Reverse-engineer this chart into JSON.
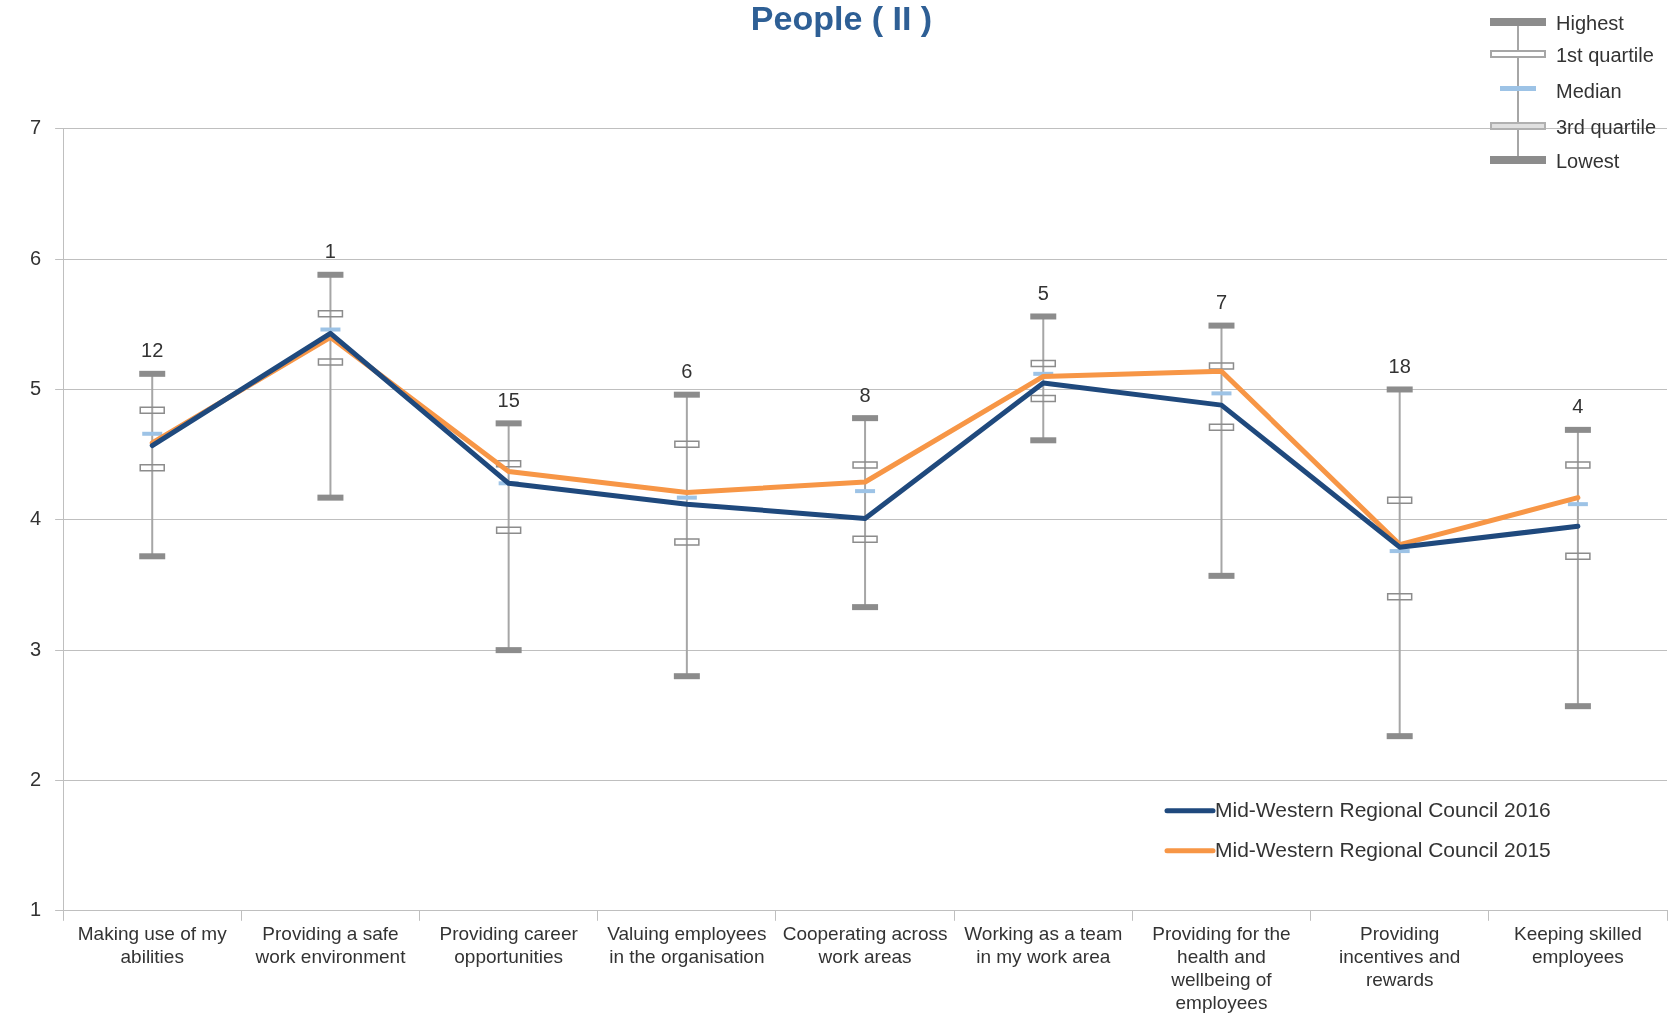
{
  "chart_data": {
    "type": "line",
    "title": "People ( II )",
    "categories": [
      "Making use of my abilities",
      "Providing a safe work environment",
      "Providing career opportunities",
      "Valuing employees in the organisation",
      "Cooperating across work areas",
      "Working as a team in my work area",
      "Providing for the health and wellbeing of employees",
      "Providing incentives and rewards",
      "Keeping skilled employees"
    ],
    "series": [
      {
        "type": "box",
        "color": "#8c8c8c",
        "boxes": [
          {
            "low": 3.72,
            "q1": 4.4,
            "median": 4.66,
            "q3": 4.84,
            "high": 5.12
          },
          {
            "low": 4.17,
            "q1": 5.21,
            "median": 5.46,
            "q3": 5.58,
            "high": 5.88
          },
          {
            "low": 3.0,
            "q1": 3.92,
            "median": 4.28,
            "q3": 4.43,
            "high": 4.74
          },
          {
            "low": 2.8,
            "q1": 3.83,
            "median": 4.17,
            "q3": 4.58,
            "high": 4.96
          },
          {
            "low": 3.33,
            "q1": 3.85,
            "median": 4.22,
            "q3": 4.42,
            "high": 4.78
          },
          {
            "low": 4.61,
            "q1": 4.93,
            "median": 5.12,
            "q3": 5.2,
            "high": 5.56
          },
          {
            "low": 3.57,
            "q1": 4.71,
            "median": 4.97,
            "q3": 5.18,
            "high": 5.49
          },
          {
            "low": 2.34,
            "q1": 3.41,
            "median": 3.76,
            "q3": 4.15,
            "high": 5.0
          },
          {
            "low": 2.57,
            "q1": 3.72,
            "median": 4.12,
            "q3": 4.42,
            "high": 4.69
          }
        ]
      },
      {
        "type": "line",
        "name": "Mid-Western Regional Council 2016",
        "color": "#1f497d",
        "values": [
          4.57,
          5.43,
          4.28,
          4.12,
          4.01,
          5.05,
          4.88,
          3.79,
          3.95
        ]
      },
      {
        "type": "line",
        "name": "Mid-Western Regional Council 2015",
        "color": "#f79646",
        "values": [
          4.59,
          5.4,
          4.37,
          4.21,
          4.29,
          5.1,
          5.14,
          3.81,
          4.17
        ]
      }
    ],
    "ylim": [
      1,
      7
    ],
    "yticks": [
      1,
      2,
      3,
      4,
      5,
      6,
      7
    ],
    "grid": "y",
    "legend": "bottom right",
    "marker": "none",
    "line_style": "solid",
    "annotations": [
      "Highest",
      "1st quartile",
      "Median",
      "3rd quartile",
      "Lowest",
      {
        "text": "12",
        "x": "Making use of my abilities",
        "y": 5.12
      },
      {
        "text": "1",
        "x": "Providing a safe work environment",
        "y": 5.88
      },
      {
        "text": "15",
        "x": "Providing career opportunities",
        "y": 4.74
      },
      {
        "text": "6",
        "x": "Valuing employees in the organisation",
        "y": 4.96
      },
      {
        "text": "8",
        "x": "Cooperating across work areas",
        "y": 4.78
      },
      {
        "text": "5",
        "x": "Working as a team in my work area",
        "y": 5.56
      },
      {
        "text": "7",
        "x": "Providing for the health and wellbeing of employees",
        "y": 5.49
      },
      {
        "text": "18",
        "x": "Providing incentives and rewards",
        "y": 5.0
      },
      {
        "text": "4",
        "x": "Keeping skilled employees",
        "y": 4.69
      }
    ]
  }
}
